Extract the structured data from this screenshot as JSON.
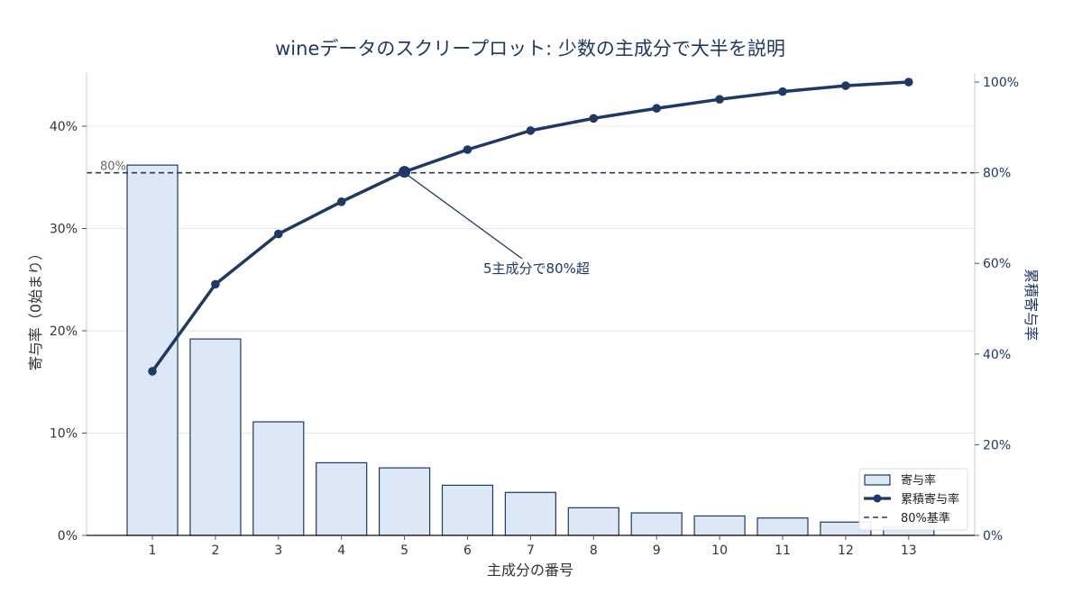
{
  "chart_data": {
    "type": "bar",
    "title": "wineデータのスクリープロット: 少数の主成分で大半を説明",
    "xlabel": "主成分の番号",
    "ylabel_left": "寄与率（0始まり）",
    "ylabel_right": "累積寄与率",
    "categories": [
      "1",
      "2",
      "3",
      "4",
      "5",
      "6",
      "7",
      "8",
      "9",
      "10",
      "11",
      "12",
      "13"
    ],
    "ylim_left": [
      0,
      45.2
    ],
    "ylim_right": [
      0,
      102
    ],
    "left_ticks": [
      {
        "value": 0,
        "label": "0%"
      },
      {
        "value": 10,
        "label": "10%"
      },
      {
        "value": 20,
        "label": "20%"
      },
      {
        "value": 30,
        "label": "30%"
      },
      {
        "value": 40,
        "label": "40%"
      }
    ],
    "right_ticks": [
      {
        "value": 0,
        "label": "0%"
      },
      {
        "value": 20,
        "label": "20%"
      },
      {
        "value": 40,
        "label": "40%"
      },
      {
        "value": 60,
        "label": "60%"
      },
      {
        "value": 80,
        "label": "80%"
      },
      {
        "value": 100,
        "label": "100%"
      }
    ],
    "series": [
      {
        "name": "寄与率",
        "type": "bar",
        "axis": "left",
        "values": [
          36.2,
          19.2,
          11.1,
          7.1,
          6.6,
          4.9,
          4.2,
          2.7,
          2.2,
          1.9,
          1.7,
          1.3,
          0.8
        ]
      },
      {
        "name": "累積寄与率",
        "type": "line",
        "axis": "right",
        "values": [
          36.2,
          55.4,
          66.5,
          73.6,
          80.2,
          85.1,
          89.3,
          92.0,
          94.2,
          96.2,
          97.9,
          99.2,
          100.0
        ]
      }
    ],
    "threshold": {
      "name": "80%基準",
      "value": 80,
      "label": "80%"
    },
    "annotation": {
      "text": "5主成分で80%超",
      "target_index": 4
    },
    "grid": "horizontal",
    "legend_position": "bottom-right",
    "colors": {
      "bar_fill": "#dce8f6",
      "bar_edge": "#1f3864",
      "line": "#1f3864",
      "threshold": "#2b3a55",
      "grid": "#e6e6e6",
      "text": "#333333",
      "title": "#1f3864"
    }
  }
}
